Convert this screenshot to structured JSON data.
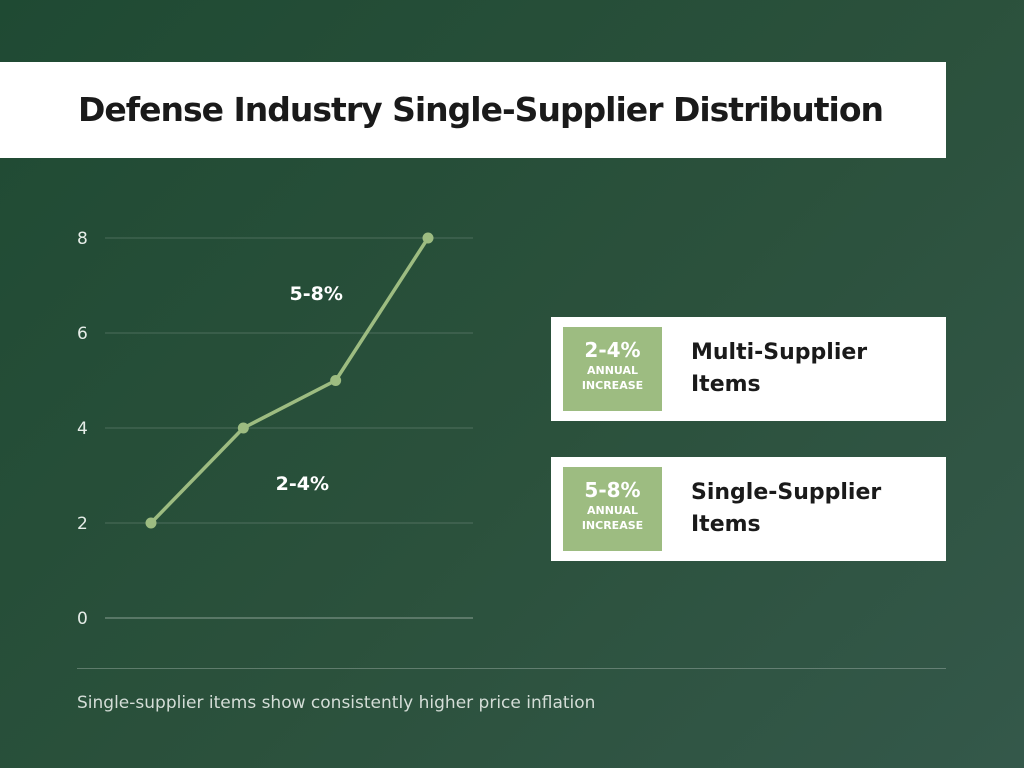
{
  "title": "Defense Industry Single-Supplier Distribution",
  "chart_data": {
    "type": "line",
    "title": "Defense Industry Single-Supplier Distribution",
    "xlabel": "",
    "ylabel": "",
    "ylim": [
      0,
      8
    ],
    "yticks": [
      "0",
      "2",
      "4",
      "6",
      "8"
    ],
    "grid": true,
    "legend": "none",
    "x": [
      1,
      2,
      3,
      4
    ],
    "values": [
      2,
      4,
      5,
      8
    ],
    "line_color": "#9dbc81",
    "annotations": [
      {
        "text": "5-8%",
        "x": 2.5,
        "y": 6.7
      },
      {
        "text": "2-4%",
        "x": 2.35,
        "y": 2.7
      }
    ]
  },
  "cards": [
    {
      "pct": "2-4%",
      "sub": "ANNUAL INCREASE",
      "label": "Multi-Supplier Items"
    },
    {
      "pct": "5-8%",
      "sub": "ANNUAL INCREASE",
      "label": "Single-Supplier Items"
    }
  ],
  "footnote": "Single-supplier items show consistently higher price inflation",
  "colors": {
    "background": "#2b513c",
    "accent": "#9dbc81",
    "card": "#ffffff",
    "text_dark": "#1a1a1a"
  }
}
